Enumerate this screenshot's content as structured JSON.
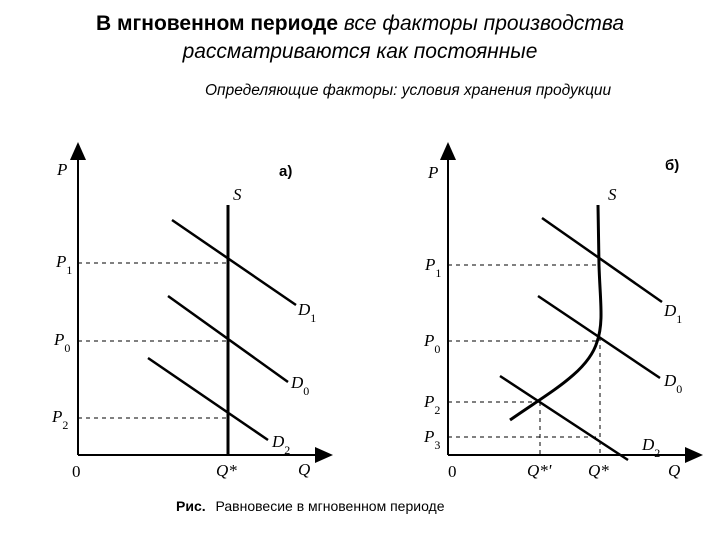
{
  "title": {
    "bold_part": "В мгновенном периоде",
    "italic_part": "все факторы производства",
    "line2": "рассматриваются как постоянные"
  },
  "subtitle": "Определяющие факторы: условия хранения продукции",
  "panel_a": {
    "tag": "а)",
    "y_axis": "P",
    "x_axis": "Q",
    "origin": "0",
    "supply": "S",
    "q_label": "Q*",
    "price_labels": [
      "P1",
      "P0",
      "P2"
    ],
    "demand_labels": [
      "D1",
      "D0",
      "D2"
    ]
  },
  "panel_b": {
    "tag": "б)",
    "y_axis": "P",
    "x_axis": "Q",
    "origin": "0",
    "supply": "S",
    "q_labels": [
      "Q*'",
      "Q*"
    ],
    "price_labels": [
      "P1",
      "P0",
      "P2",
      "P3"
    ],
    "demand_labels": [
      "D1",
      "D0",
      "D2"
    ]
  },
  "caption": {
    "prefix": "Рис.",
    "text": "Равновесие в мгновенном периоде"
  }
}
